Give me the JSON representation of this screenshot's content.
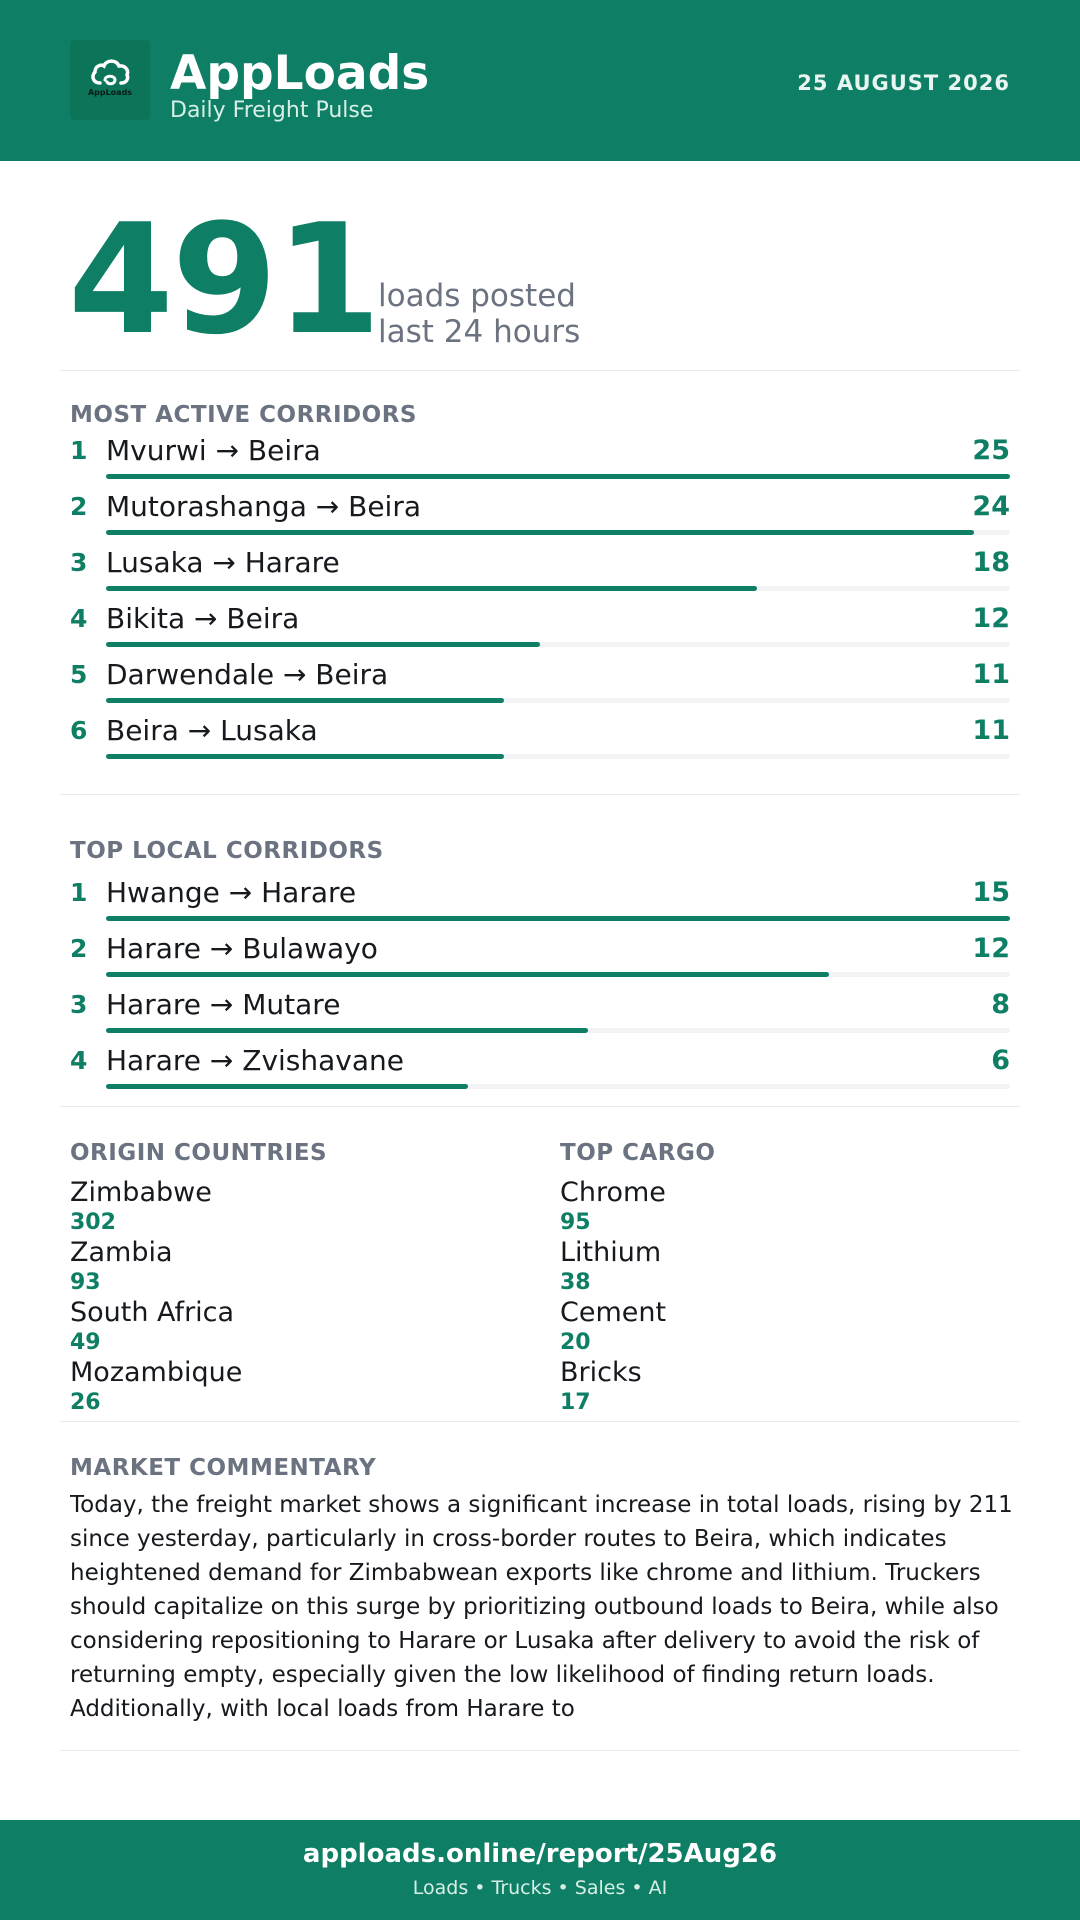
{
  "header": {
    "logo_text": "AppLoads",
    "title": "AppLoads",
    "subtitle": "Daily Freight Pulse",
    "date": "25 AUGUST 2026"
  },
  "hero": {
    "value": "491",
    "label_line1": "loads posted",
    "label_line2": "last 24 hours"
  },
  "most_active": {
    "title": "MOST ACTIVE CORRIDORS",
    "max": 25,
    "rows": [
      {
        "rank": "1",
        "route": "Mvurwi → Beira",
        "count": 25
      },
      {
        "rank": "2",
        "route": "Mutorashanga → Beira",
        "count": 24
      },
      {
        "rank": "3",
        "route": "Lusaka → Harare",
        "count": 18
      },
      {
        "rank": "4",
        "route": "Bikita → Beira",
        "count": 12
      },
      {
        "rank": "5",
        "route": "Darwendale → Beira",
        "count": 11
      },
      {
        "rank": "6",
        "route": "Beira → Lusaka",
        "count": 11
      }
    ]
  },
  "top_local": {
    "title": "TOP LOCAL CORRIDORS",
    "max": 15,
    "rows": [
      {
        "rank": "1",
        "route": "Hwange → Harare",
        "count": 15
      },
      {
        "rank": "2",
        "route": "Harare → Bulawayo",
        "count": 12
      },
      {
        "rank": "3",
        "route": "Harare → Mutare",
        "count": 8
      },
      {
        "rank": "4",
        "route": "Harare → Zvishavane",
        "count": 6
      }
    ]
  },
  "origin_countries": {
    "title": "ORIGIN COUNTRIES",
    "items": [
      {
        "name": "Zimbabwe",
        "value": "302"
      },
      {
        "name": "Zambia",
        "value": "93"
      },
      {
        "name": "South Africa",
        "value": "49"
      },
      {
        "name": "Mozambique",
        "value": "26"
      }
    ]
  },
  "top_cargo": {
    "title": "TOP CARGO",
    "items": [
      {
        "name": "Chrome",
        "value": "95"
      },
      {
        "name": "Lithium",
        "value": "38"
      },
      {
        "name": "Cement",
        "value": "20"
      },
      {
        "name": "Bricks",
        "value": "17"
      }
    ]
  },
  "commentary": {
    "title": "MARKET COMMENTARY",
    "text": "Today, the freight market shows a significant increase in total loads, rising by 211 since yesterday, particularly in cross-border routes to Beira, which indicates heightened demand for Zimbabwean exports like chrome and lithium. Truckers should capitalize on this surge by prioritizing outbound loads to Beira, while also considering repositioning to Harare or Lusaka after delivery to avoid the risk of returning empty, especially given the low likelihood of finding return loads. Additionally, with local loads from Harare to"
  },
  "footer": {
    "url": "apploads.online/report/25Aug26",
    "tagline": "Loads • Trucks • Sales • AI"
  },
  "colors": {
    "brand": "#0e7f65",
    "muted": "#6b7280",
    "track": "#f1f3f4"
  },
  "icons": {
    "logo": "cloud-icon"
  }
}
